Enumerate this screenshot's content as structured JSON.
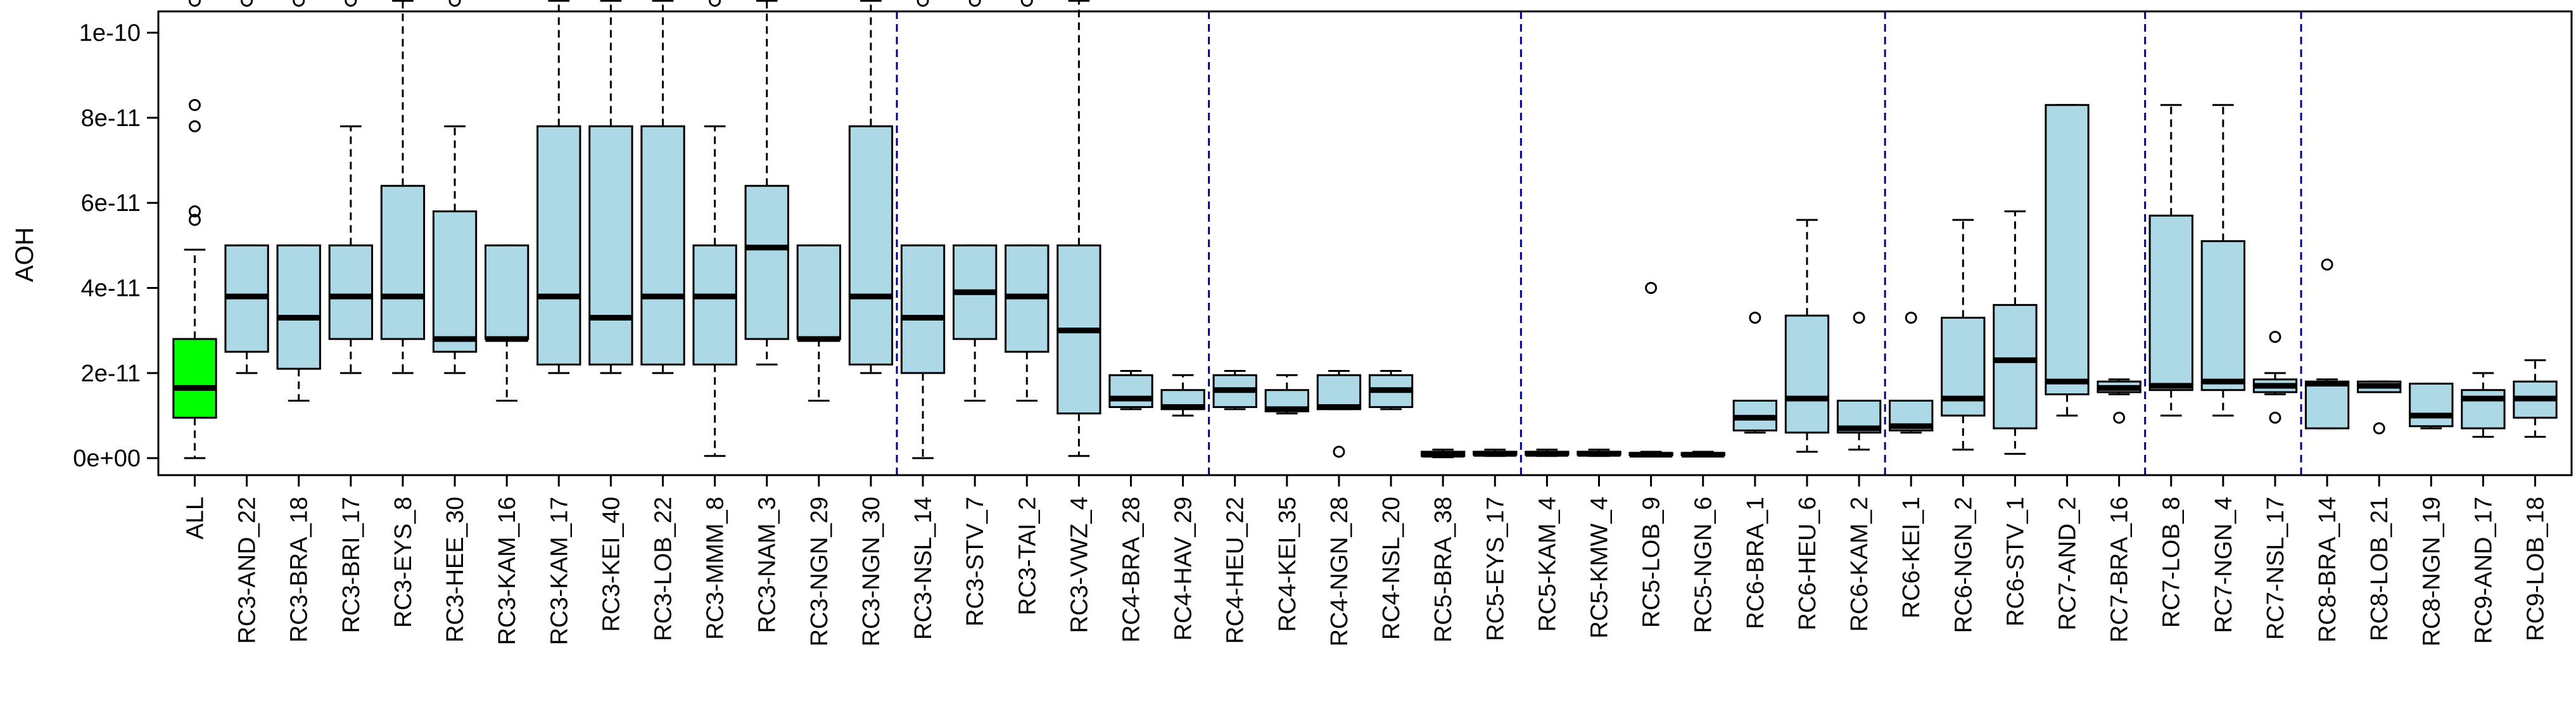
{
  "chart_data": {
    "type": "boxplot",
    "title": "",
    "xlabel": "",
    "ylabel": "AOH",
    "ylim": [
      -4e-12,
      1.05e-10
    ],
    "yticks": [
      0,
      2e-11,
      4e-11,
      6e-11,
      8e-11,
      1e-10
    ],
    "ytick_labels": [
      "0e+00",
      "2e-11",
      "4e-11",
      "6e-11",
      "8e-11",
      "1e-10"
    ],
    "colors": {
      "highlight": "#00ff00",
      "box": "#add8e6",
      "separator": "#00008b"
    },
    "separators_after": [
      13,
      19,
      25,
      32,
      37,
      40
    ],
    "categories": [
      "ALL",
      "RC3-AND_22",
      "RC3-BRA_18",
      "RC3-BRI_17",
      "RC3-EYS_8",
      "RC3-HEE_30",
      "RC3-KAM_16",
      "RC3-KAM_17",
      "RC3-KEI_40",
      "RC3-LOB_22",
      "RC3-MMM_8",
      "RC3-NAM_3",
      "RC3-NGN_29",
      "RC3-NGN_30",
      "RC3-NSL_14",
      "RC3-STV_7",
      "RC3-TAI_2",
      "RC3-VWZ_4",
      "RC4-BRA_28",
      "RC4-HAV_29",
      "RC4-HEU_22",
      "RC4-KEI_35",
      "RC4-NGN_28",
      "RC4-NSL_20",
      "RC5-BRA_38",
      "RC5-EYS_17",
      "RC5-KAM_4",
      "RC5-KMW_4",
      "RC5-LOB_9",
      "RC5-NGN_6",
      "RC6-BRA_1",
      "RC6-HEU_6",
      "RC6-KAM_2",
      "RC6-KEI_1",
      "RC6-NGN_2",
      "RC6-STV_1",
      "RC7-AND_2",
      "RC7-BRA_16",
      "RC7-LOB_8",
      "RC7-NGN_4",
      "RC7-NSL_17",
      "RC8-BRA_14",
      "RC8-LOB_21",
      "RC8-NGN_19",
      "RC9-AND_17",
      "RC9-LOB_18"
    ],
    "boxes": [
      {
        "min": 0,
        "q1": 9.5e-12,
        "median": 1.65e-11,
        "q3": 2.8e-11,
        "max": 4.9e-11,
        "outliers": [
          5.6e-11,
          5.8e-11,
          7.8e-11,
          8.3e-11,
          1.075e-10
        ]
      },
      {
        "min": 2e-11,
        "q1": 2.5e-11,
        "median": 3.8e-11,
        "q3": 5e-11,
        "max": 5e-11,
        "outliers": [
          1.075e-10
        ]
      },
      {
        "min": 1.35e-11,
        "q1": 2.1e-11,
        "median": 3.3e-11,
        "q3": 5e-11,
        "max": 5e-11,
        "outliers": [
          1.075e-10
        ]
      },
      {
        "min": 2e-11,
        "q1": 2.8e-11,
        "median": 3.8e-11,
        "q3": 5e-11,
        "max": 7.8e-11,
        "outliers": [
          1.075e-10
        ]
      },
      {
        "min": 2e-11,
        "q1": 2.8e-11,
        "median": 3.8e-11,
        "q3": 6.4e-11,
        "max": 1.075e-10,
        "outliers": []
      },
      {
        "min": 2e-11,
        "q1": 2.5e-11,
        "median": 2.8e-11,
        "q3": 5.8e-11,
        "max": 7.8e-11,
        "outliers": [
          1.075e-10
        ]
      },
      {
        "min": 1.35e-11,
        "q1": 2.8e-11,
        "median": 2.8e-11,
        "q3": 5e-11,
        "max": 5e-11,
        "outliers": []
      },
      {
        "min": 2e-11,
        "q1": 2.2e-11,
        "median": 3.8e-11,
        "q3": 7.8e-11,
        "max": 1.075e-10,
        "outliers": []
      },
      {
        "min": 2e-11,
        "q1": 2.2e-11,
        "median": 3.3e-11,
        "q3": 7.8e-11,
        "max": 1.075e-10,
        "outliers": []
      },
      {
        "min": 2e-11,
        "q1": 2.2e-11,
        "median": 3.8e-11,
        "q3": 7.8e-11,
        "max": 1.075e-10,
        "outliers": []
      },
      {
        "min": 5e-13,
        "q1": 2.2e-11,
        "median": 3.8e-11,
        "q3": 5e-11,
        "max": 7.8e-11,
        "outliers": [
          1.075e-10
        ]
      },
      {
        "min": 2.2e-11,
        "q1": 2.8e-11,
        "median": 4.95e-11,
        "q3": 6.4e-11,
        "max": 1.075e-10,
        "outliers": []
      },
      {
        "min": 1.35e-11,
        "q1": 2.8e-11,
        "median": 2.8e-11,
        "q3": 5e-11,
        "max": 5e-11,
        "outliers": []
      },
      {
        "min": 2e-11,
        "q1": 2.2e-11,
        "median": 3.8e-11,
        "q3": 7.8e-11,
        "max": 1.075e-10,
        "outliers": []
      },
      {
        "min": 0,
        "q1": 2e-11,
        "median": 3.3e-11,
        "q3": 5e-11,
        "max": 5e-11,
        "outliers": [
          1.075e-10
        ]
      },
      {
        "min": 1.35e-11,
        "q1": 2.8e-11,
        "median": 3.9e-11,
        "q3": 5e-11,
        "max": 5e-11,
        "outliers": [
          1.075e-10
        ]
      },
      {
        "min": 1.35e-11,
        "q1": 2.5e-11,
        "median": 3.8e-11,
        "q3": 5e-11,
        "max": 5e-11,
        "outliers": [
          1.075e-10
        ]
      },
      {
        "min": 5e-13,
        "q1": 1.05e-11,
        "median": 3e-11,
        "q3": 5e-11,
        "max": 1.075e-10,
        "outliers": []
      },
      {
        "min": 1.15e-11,
        "q1": 1.2e-11,
        "median": 1.4e-11,
        "q3": 1.95e-11,
        "max": 2.05e-11,
        "outliers": []
      },
      {
        "min": 1e-11,
        "q1": 1.15e-11,
        "median": 1.2e-11,
        "q3": 1.6e-11,
        "max": 1.95e-11,
        "outliers": []
      },
      {
        "min": 1.15e-11,
        "q1": 1.2e-11,
        "median": 1.6e-11,
        "q3": 1.95e-11,
        "max": 2.05e-11,
        "outliers": []
      },
      {
        "min": 1.05e-11,
        "q1": 1.1e-11,
        "median": 1.15e-11,
        "q3": 1.6e-11,
        "max": 1.95e-11,
        "outliers": []
      },
      {
        "min": 1.15e-11,
        "q1": 1.15e-11,
        "median": 1.2e-11,
        "q3": 1.95e-11,
        "max": 2.05e-11,
        "outliers": [
          1.5e-12
        ]
      },
      {
        "min": 1.15e-11,
        "q1": 1.2e-11,
        "median": 1.6e-11,
        "q3": 1.95e-11,
        "max": 2.05e-11,
        "outliers": []
      },
      {
        "min": 2e-13,
        "q1": 5e-13,
        "median": 8e-13,
        "q3": 1.5e-12,
        "max": 2e-12,
        "outliers": []
      },
      {
        "min": 5e-13,
        "q1": 8e-13,
        "median": 1e-12,
        "q3": 1.5e-12,
        "max": 2e-12,
        "outliers": []
      },
      {
        "min": 5e-13,
        "q1": 8e-13,
        "median": 1e-12,
        "q3": 1.5e-12,
        "max": 2e-12,
        "outliers": []
      },
      {
        "min": 5e-13,
        "q1": 8e-13,
        "median": 1e-12,
        "q3": 1.5e-12,
        "max": 2e-12,
        "outliers": []
      },
      {
        "min": 5e-13,
        "q1": 7e-13,
        "median": 8e-13,
        "q3": 1.2e-12,
        "max": 1.5e-12,
        "outliers": [
          4e-11
        ]
      },
      {
        "min": 5e-13,
        "q1": 7e-13,
        "median": 8e-13,
        "q3": 1.2e-12,
        "max": 1.5e-12,
        "outliers": []
      },
      {
        "min": 6e-12,
        "q1": 6.5e-12,
        "median": 9.5e-12,
        "q3": 1.35e-11,
        "max": 1.35e-11,
        "outliers": [
          3.3e-11
        ]
      },
      {
        "min": 1.5e-12,
        "q1": 6e-12,
        "median": 1.4e-11,
        "q3": 3.35e-11,
        "max": 5.6e-11,
        "outliers": []
      },
      {
        "min": 2e-12,
        "q1": 6e-12,
        "median": 7e-12,
        "q3": 1.35e-11,
        "max": 1.35e-11,
        "outliers": [
          3.3e-11
        ]
      },
      {
        "min": 6e-12,
        "q1": 6.5e-12,
        "median": 7.5e-12,
        "q3": 1.35e-11,
        "max": 1.35e-11,
        "outliers": [
          3.3e-11
        ]
      },
      {
        "min": 2e-12,
        "q1": 1e-11,
        "median": 1.4e-11,
        "q3": 3.3e-11,
        "max": 5.6e-11,
        "outliers": []
      },
      {
        "min": 1e-12,
        "q1": 7e-12,
        "median": 2.3e-11,
        "q3": 3.6e-11,
        "max": 5.8e-11,
        "outliers": []
      },
      {
        "min": 1e-11,
        "q1": 1.5e-11,
        "median": 1.8e-11,
        "q3": 8.3e-11,
        "max": 8.3e-11,
        "outliers": []
      },
      {
        "min": 1.5e-11,
        "q1": 1.55e-11,
        "median": 1.65e-11,
        "q3": 1.8e-11,
        "max": 1.85e-11,
        "outliers": [
          9.5e-12
        ]
      },
      {
        "min": 1e-11,
        "q1": 1.6e-11,
        "median": 1.7e-11,
        "q3": 5.7e-11,
        "max": 8.3e-11,
        "outliers": []
      },
      {
        "min": 1e-11,
        "q1": 1.6e-11,
        "median": 1.8e-11,
        "q3": 5.1e-11,
        "max": 8.3e-11,
        "outliers": []
      },
      {
        "min": 1.5e-11,
        "q1": 1.55e-11,
        "median": 1.7e-11,
        "q3": 1.85e-11,
        "max": 2e-11,
        "outliers": [
          9.5e-12,
          2.85e-11
        ]
      },
      {
        "min": 7e-12,
        "q1": 7e-12,
        "median": 1.75e-11,
        "q3": 1.8e-11,
        "max": 1.85e-11,
        "outliers": [
          4.55e-11
        ]
      },
      {
        "min": 1.55e-11,
        "q1": 1.55e-11,
        "median": 1.7e-11,
        "q3": 1.8e-11,
        "max": 1.8e-11,
        "outliers": [
          7e-12
        ]
      },
      {
        "min": 7e-12,
        "q1": 7.5e-12,
        "median": 1e-11,
        "q3": 1.75e-11,
        "max": 1.75e-11,
        "outliers": []
      },
      {
        "min": 5e-12,
        "q1": 7e-12,
        "median": 1.4e-11,
        "q3": 1.6e-11,
        "max": 2e-11,
        "outliers": []
      },
      {
        "min": 5e-12,
        "q1": 9.5e-12,
        "median": 1.4e-11,
        "q3": 1.8e-11,
        "max": 2.3e-11,
        "outliers": []
      }
    ]
  }
}
